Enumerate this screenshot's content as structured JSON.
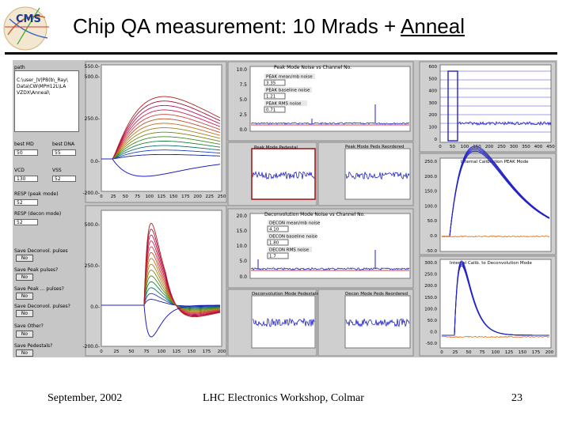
{
  "title": {
    "main": "Chip QA measurement: 10 Mrads + ",
    "underlined": "Anneal"
  },
  "footer": {
    "date": "September, 2002",
    "event": "LHC Electronics Workshop, Colmar",
    "page": "23"
  },
  "logo": {
    "text": "CMS"
  },
  "left_panel": {
    "path_label": "path",
    "path_text": [
      "C:\\user_|V|PB(b\\_Ray\\",
      "Data\\CW\\MPH12L\\LA",
      "VZDX\\Anneal\\"
    ],
    "fields": [
      {
        "label": "best MD",
        "value": "50"
      },
      {
        "label": "best DNA",
        "value": "55"
      },
      {
        "label": "VCD",
        "value": "130"
      },
      {
        "label": "VSS",
        "value": "52"
      },
      {
        "label": "RESP (peak mode)",
        "value": "52"
      },
      {
        "label": "RESP (decon mode)",
        "value": "52"
      }
    ],
    "save_controls": [
      {
        "label": "Save Deconvol. pulses",
        "value": "No"
      },
      {
        "label": "Save Peak pulses?",
        "value": "No"
      },
      {
        "label": "Save Peak ... pulses?",
        "value": "No"
      },
      {
        "label": "Save Deconvol. pulses?",
        "value": "No"
      },
      {
        "label": "Save Other?",
        "value": "No"
      },
      {
        "label": "Save Pedestals?",
        "value": "No"
      }
    ]
  },
  "pulse_top": {
    "y_ticks": [
      "550.0-",
      "500.0-",
      "250.0-",
      "0.0-",
      "-200.0-"
    ],
    "x_ticks": [
      "0",
      "25",
      "50",
      "75",
      "100",
      "125",
      "150",
      "175",
      "200",
      "225",
      "250"
    ]
  },
  "pulse_bottom": {
    "y_ticks": [
      "500.0-",
      "250.0-",
      "0.0-",
      "-200.0-"
    ],
    "x_ticks": [
      "0",
      "25",
      "50",
      "75",
      "100",
      "125",
      "150",
      "175",
      "200"
    ]
  },
  "peak_noise": {
    "title": "Peak Mode Noise vs Channel No.",
    "y_ticks": [
      "10.0",
      "7.5",
      "5.0",
      "2.5",
      "0.0"
    ],
    "stats": [
      {
        "label": "PEAK mean/mb noise",
        "value": "3.35"
      },
      {
        "label": "PEAK baseline noise",
        "value": "1.21"
      },
      {
        "label": "PEAK RMS noise",
        "value": "0.71"
      }
    ]
  },
  "peak_ped_a": {
    "title": "Peak Mode Pedestal"
  },
  "peak_ped_b": {
    "title": "Peak Mode Peds Reordered"
  },
  "decon_noise": {
    "title": "Deconvolution Mode Noise vs Channel No.",
    "y_ticks": [
      "20.0",
      "15.0",
      "10.0",
      "5.0",
      "0.0"
    ],
    "stats": [
      {
        "label": "DECON mean/mb noise",
        "value": "4.10"
      },
      {
        "label": "DECON baseline noise",
        "value": "1.80"
      },
      {
        "label": "DECON RMS noise",
        "value": "1.7"
      }
    ]
  },
  "decon_ped_a": {
    "title": "Deconvolution Mode Pedestals"
  },
  "decon_ped_b": {
    "title": "Decon Mode Peds Reordered"
  },
  "hist": {
    "y_ticks": [
      "600",
      "500",
      "400",
      "300",
      "200",
      "100",
      "0"
    ],
    "x_ticks": [
      "0",
      "50",
      "100",
      "150",
      "200",
      "250",
      "300",
      "350",
      "400",
      "450"
    ]
  },
  "peak_pulse": {
    "title": "Internal Calibration PEAK Mode",
    "y_ticks": [
      "250.0",
      "200.0",
      "150.0",
      "100.0",
      "50.0",
      "0.0",
      "-50.0"
    ]
  },
  "decon_pulse": {
    "title": "Internal Calib. to Deconvolution Mode",
    "y_ticks": [
      "300.0",
      "250.0",
      "200.0",
      "150.0",
      "100.0",
      "50.0",
      "0.0",
      "-50.0"
    ],
    "x_ticks": [
      "0",
      "25",
      "50",
      "75",
      "100",
      "125",
      "150",
      "175",
      "200"
    ]
  },
  "colors": {
    "panel": "#c6c6c6",
    "plot_bg": "#cfcfcf",
    "blue": "#2222c8",
    "red": "#c80000",
    "orange": "#e07010"
  }
}
